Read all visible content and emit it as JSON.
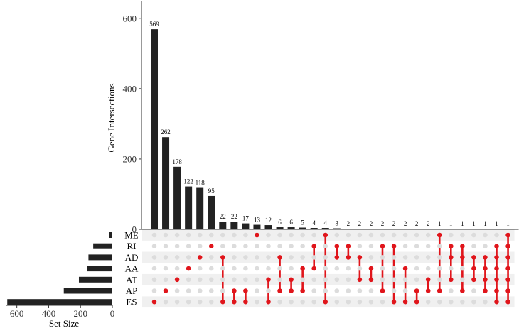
{
  "chart_data": {
    "type": "bar",
    "subtype": "upset",
    "ylabel": "Gene Intersections",
    "xlabel_sets": "Set Size",
    "ylim": [
      0,
      650
    ],
    "y_ticks": [
      0,
      200,
      400,
      600
    ],
    "set_size_ticks": [
      600,
      400,
      200,
      0
    ],
    "set_size_lim": [
      0,
      670
    ],
    "sets": [
      "ME",
      "RI",
      "AD",
      "AA",
      "AT",
      "AP",
      "ES"
    ],
    "set_sizes": [
      22,
      120,
      150,
      160,
      210,
      305,
      660
    ],
    "intersection_values": [
      569,
      262,
      178,
      122,
      118,
      95,
      22,
      22,
      17,
      13,
      12,
      6,
      6,
      5,
      4,
      4,
      3,
      2,
      2,
      2,
      2,
      2,
      2,
      2,
      2,
      1,
      1,
      1,
      1,
      1,
      1,
      1
    ],
    "intersection_labels": [
      "569",
      "262",
      "178",
      "122",
      "118",
      "95",
      "22",
      "22",
      "17",
      "13",
      "12",
      "6",
      "6",
      "5",
      "4",
      "4",
      "3",
      "2",
      "2",
      "2",
      "2",
      "2",
      "2",
      "2",
      "2",
      "1",
      "1",
      "1",
      "1",
      "1",
      "1",
      "1"
    ],
    "memberships": [
      [
        "ES"
      ],
      [
        "AP"
      ],
      [
        "AT"
      ],
      [
        "AA"
      ],
      [
        "AD"
      ],
      [
        "RI"
      ],
      [
        "AD",
        "ES"
      ],
      [
        "AP",
        "ES"
      ],
      [
        "AP",
        "ES"
      ],
      [
        "ME"
      ],
      [
        "AT",
        "ES"
      ],
      [
        "AD",
        "AP"
      ],
      [
        "AT",
        "AP"
      ],
      [
        "AA",
        "AP"
      ],
      [
        "RI",
        "AA"
      ],
      [
        "ME",
        "ES"
      ],
      [
        "RI",
        "AD"
      ],
      [
        "RI",
        "AD"
      ],
      [
        "AD",
        "AT"
      ],
      [
        "AA",
        "AT"
      ],
      [
        "RI",
        "AP"
      ],
      [
        "RI",
        "ES"
      ],
      [
        "AA",
        "ES"
      ],
      [
        "AP",
        "ES"
      ],
      [
        "AT",
        "AP"
      ],
      [
        "ME",
        "AP"
      ],
      [
        "RI",
        "AD",
        "AT"
      ],
      [
        "RI",
        "AD",
        "AP"
      ],
      [
        "AD",
        "AA",
        "AT"
      ],
      [
        "AD",
        "AA",
        "AT",
        "AP"
      ],
      [
        "RI",
        "AD",
        "AA",
        "AT",
        "AP",
        "ES"
      ],
      [
        "ME",
        "RI",
        "AD",
        "AA",
        "AT",
        "AP",
        "ES"
      ]
    ],
    "colors": {
      "bar": "#222222",
      "dot_active": "#e0151b",
      "dot_inactive": "#dcdcdc",
      "row_shade": "#f0f0f0",
      "axis": "#333333"
    },
    "grid": false
  }
}
